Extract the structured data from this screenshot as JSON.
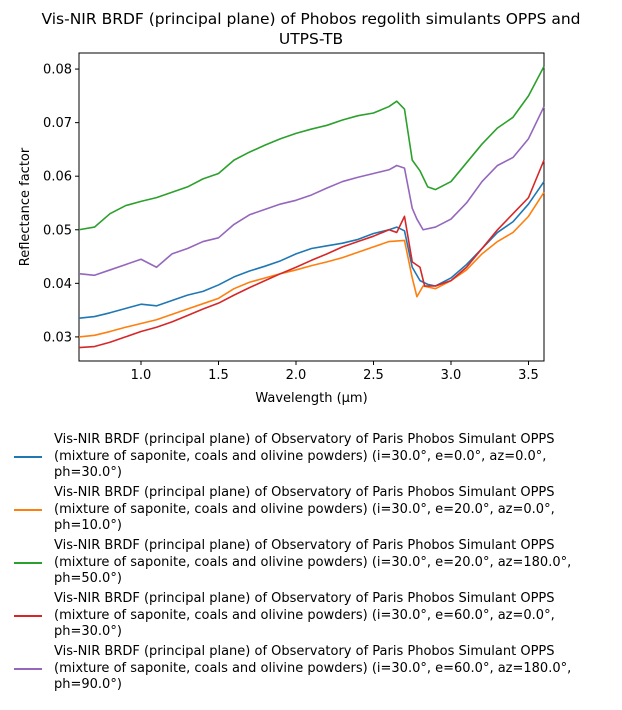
{
  "chart_data": {
    "type": "line",
    "title": "Vis-NIR BRDF (principal plane) of Phobos regolith simulants OPPS and UTPS-TB",
    "title_lines": [
      "Vis-NIR BRDF (principal plane) of Phobos regolith simulants OPPS and",
      "UTPS-TB"
    ],
    "xlabel": "Wavelength (μm)",
    "ylabel": "Reflectance factor",
    "xlim": [
      0.6,
      3.6
    ],
    "ylim": [
      0.0255,
      0.083
    ],
    "xticks": [
      1.0,
      1.5,
      2.0,
      2.5,
      3.0,
      3.5
    ],
    "xtick_labels": [
      "1.0",
      "1.5",
      "2.0",
      "2.5",
      "3.0",
      "3.5"
    ],
    "yticks": [
      0.03,
      0.04,
      0.05,
      0.06,
      0.07,
      0.08
    ],
    "ytick_labels": [
      "0.03",
      "0.04",
      "0.05",
      "0.06",
      "0.07",
      "0.08"
    ],
    "grid": false,
    "legend_position": "below plot",
    "series": [
      {
        "name": "Vis-NIR BRDF (principal plane) of Observatory of Paris Phobos Simulant OPPS (mixture of saponite, coals and olivine powders) (i=30.0°, e=0.0°, az=0.0°, ph=30.0°)",
        "legend_lines": [
          "Vis-NIR BRDF (principal plane) of Observatory of Paris Phobos Simulant OPPS",
          "(mixture of saponite, coals and olivine powders) (i=30.0°, e=0.0°, az=0.0°,",
          "ph=30.0°)"
        ],
        "color": "#1f77b4",
        "points": [
          [
            0.6,
            0.0335
          ],
          [
            0.7,
            0.0338
          ],
          [
            0.8,
            0.0345
          ],
          [
            0.9,
            0.0353
          ],
          [
            1.0,
            0.0361
          ],
          [
            1.1,
            0.0358
          ],
          [
            1.2,
            0.0368
          ],
          [
            1.3,
            0.0378
          ],
          [
            1.4,
            0.0385
          ],
          [
            1.5,
            0.0397
          ],
          [
            1.6,
            0.0412
          ],
          [
            1.7,
            0.0423
          ],
          [
            1.8,
            0.0432
          ],
          [
            1.9,
            0.0442
          ],
          [
            2.0,
            0.0455
          ],
          [
            2.1,
            0.0465
          ],
          [
            2.2,
            0.047
          ],
          [
            2.3,
            0.0475
          ],
          [
            2.4,
            0.0482
          ],
          [
            2.5,
            0.0493
          ],
          [
            2.6,
            0.05
          ],
          [
            2.65,
            0.0505
          ],
          [
            2.7,
            0.0498
          ],
          [
            2.75,
            0.043
          ],
          [
            2.8,
            0.0405
          ],
          [
            2.85,
            0.0398
          ],
          [
            2.9,
            0.0395
          ],
          [
            3.0,
            0.041
          ],
          [
            3.1,
            0.0435
          ],
          [
            3.2,
            0.0465
          ],
          [
            3.3,
            0.0495
          ],
          [
            3.4,
            0.0515
          ],
          [
            3.5,
            0.0548
          ],
          [
            3.6,
            0.059
          ]
        ]
      },
      {
        "name": "Vis-NIR BRDF (principal plane) of Observatory of Paris Phobos Simulant OPPS (mixture of saponite, coals and olivine powders) (i=30.0°, e=20.0°, az=0.0°, ph=10.0°)",
        "legend_lines": [
          "Vis-NIR BRDF (principal plane) of Observatory of Paris Phobos Simulant OPPS",
          "(mixture of saponite, coals and olivine powders) (i=30.0°, e=20.0°, az=0.0°,",
          "ph=10.0°)"
        ],
        "color": "#ff7f0e",
        "points": [
          [
            0.6,
            0.03
          ],
          [
            0.7,
            0.0303
          ],
          [
            0.8,
            0.031
          ],
          [
            0.9,
            0.0318
          ],
          [
            1.0,
            0.0325
          ],
          [
            1.1,
            0.0332
          ],
          [
            1.2,
            0.0342
          ],
          [
            1.3,
            0.0352
          ],
          [
            1.4,
            0.0362
          ],
          [
            1.5,
            0.0372
          ],
          [
            1.6,
            0.039
          ],
          [
            1.7,
            0.0402
          ],
          [
            1.8,
            0.041
          ],
          [
            1.9,
            0.0418
          ],
          [
            2.0,
            0.0425
          ],
          [
            2.1,
            0.0433
          ],
          [
            2.2,
            0.044
          ],
          [
            2.3,
            0.0448
          ],
          [
            2.4,
            0.0458
          ],
          [
            2.5,
            0.0468
          ],
          [
            2.6,
            0.0478
          ],
          [
            2.7,
            0.048
          ],
          [
            2.75,
            0.041
          ],
          [
            2.78,
            0.0375
          ],
          [
            2.82,
            0.0395
          ],
          [
            2.9,
            0.039
          ],
          [
            3.0,
            0.0405
          ],
          [
            3.1,
            0.0425
          ],
          [
            3.2,
            0.0455
          ],
          [
            3.3,
            0.0478
          ],
          [
            3.4,
            0.0495
          ],
          [
            3.5,
            0.0525
          ],
          [
            3.6,
            0.057
          ]
        ]
      },
      {
        "name": "Vis-NIR BRDF (principal plane) of Observatory of Paris Phobos Simulant OPPS (mixture of saponite, coals and olivine powders) (i=30.0°, e=20.0°, az=180.0°, ph=50.0°)",
        "legend_lines": [
          "Vis-NIR BRDF (principal plane) of Observatory of Paris Phobos Simulant OPPS",
          "(mixture of saponite, coals and olivine powders) (i=30.0°, e=20.0°, az=180.0°,",
          "ph=50.0°)"
        ],
        "color": "#2ca02c",
        "points": [
          [
            0.6,
            0.05
          ],
          [
            0.7,
            0.0505
          ],
          [
            0.8,
            0.053
          ],
          [
            0.9,
            0.0545
          ],
          [
            1.0,
            0.0553
          ],
          [
            1.1,
            0.056
          ],
          [
            1.2,
            0.057
          ],
          [
            1.3,
            0.058
          ],
          [
            1.4,
            0.0595
          ],
          [
            1.5,
            0.0605
          ],
          [
            1.6,
            0.063
          ],
          [
            1.7,
            0.0645
          ],
          [
            1.8,
            0.0658
          ],
          [
            1.9,
            0.067
          ],
          [
            2.0,
            0.068
          ],
          [
            2.1,
            0.0688
          ],
          [
            2.2,
            0.0695
          ],
          [
            2.3,
            0.0705
          ],
          [
            2.4,
            0.0713
          ],
          [
            2.5,
            0.0718
          ],
          [
            2.6,
            0.073
          ],
          [
            2.65,
            0.074
          ],
          [
            2.7,
            0.0725
          ],
          [
            2.75,
            0.063
          ],
          [
            2.8,
            0.061
          ],
          [
            2.85,
            0.058
          ],
          [
            2.9,
            0.0575
          ],
          [
            3.0,
            0.059
          ],
          [
            3.1,
            0.0625
          ],
          [
            3.2,
            0.066
          ],
          [
            3.3,
            0.069
          ],
          [
            3.4,
            0.071
          ],
          [
            3.5,
            0.075
          ],
          [
            3.6,
            0.0805
          ]
        ]
      },
      {
        "name": "Vis-NIR BRDF (principal plane) of Observatory of Paris Phobos Simulant OPPS (mixture of saponite, coals and olivine powders) (i=30.0°, e=60.0°, az=0.0°, ph=30.0°)",
        "legend_lines": [
          "Vis-NIR BRDF (principal plane) of Observatory of Paris Phobos Simulant OPPS",
          "(mixture of saponite, coals and olivine powders) (i=30.0°, e=60.0°, az=0.0°,",
          "ph=30.0°)"
        ],
        "color": "#d62728",
        "points": [
          [
            0.6,
            0.028
          ],
          [
            0.7,
            0.0282
          ],
          [
            0.8,
            0.029
          ],
          [
            0.9,
            0.03
          ],
          [
            1.0,
            0.031
          ],
          [
            1.1,
            0.0318
          ],
          [
            1.2,
            0.0328
          ],
          [
            1.3,
            0.034
          ],
          [
            1.4,
            0.0352
          ],
          [
            1.5,
            0.0363
          ],
          [
            1.6,
            0.0378
          ],
          [
            1.7,
            0.0392
          ],
          [
            1.8,
            0.0405
          ],
          [
            1.9,
            0.0418
          ],
          [
            2.0,
            0.043
          ],
          [
            2.1,
            0.0443
          ],
          [
            2.2,
            0.0455
          ],
          [
            2.3,
            0.0468
          ],
          [
            2.4,
            0.0478
          ],
          [
            2.5,
            0.0488
          ],
          [
            2.6,
            0.05
          ],
          [
            2.65,
            0.0495
          ],
          [
            2.7,
            0.0525
          ],
          [
            2.75,
            0.044
          ],
          [
            2.8,
            0.043
          ],
          [
            2.83,
            0.0395
          ],
          [
            2.9,
            0.0395
          ],
          [
            3.0,
            0.0405
          ],
          [
            3.1,
            0.043
          ],
          [
            3.2,
            0.0465
          ],
          [
            3.3,
            0.05
          ],
          [
            3.4,
            0.053
          ],
          [
            3.5,
            0.056
          ],
          [
            3.6,
            0.063
          ]
        ]
      },
      {
        "name": "Vis-NIR BRDF (principal plane) of Observatory of Paris Phobos Simulant OPPS (mixture of saponite, coals and olivine powders) (i=30.0°, e=60.0°, az=180.0°, ph=90.0°)",
        "legend_lines": [
          "Vis-NIR BRDF (principal plane) of Observatory of Paris Phobos Simulant OPPS",
          "(mixture of saponite, coals and olivine powders) (i=30.0°, e=60.0°, az=180.0°,",
          "ph=90.0°)"
        ],
        "color": "#9467bd",
        "points": [
          [
            0.6,
            0.0418
          ],
          [
            0.7,
            0.0415
          ],
          [
            0.8,
            0.0425
          ],
          [
            0.9,
            0.0435
          ],
          [
            1.0,
            0.0445
          ],
          [
            1.1,
            0.043
          ],
          [
            1.2,
            0.0455
          ],
          [
            1.3,
            0.0465
          ],
          [
            1.4,
            0.0478
          ],
          [
            1.5,
            0.0485
          ],
          [
            1.6,
            0.051
          ],
          [
            1.7,
            0.0528
          ],
          [
            1.8,
            0.0538
          ],
          [
            1.9,
            0.0548
          ],
          [
            2.0,
            0.0555
          ],
          [
            2.1,
            0.0565
          ],
          [
            2.2,
            0.0578
          ],
          [
            2.3,
            0.059
          ],
          [
            2.4,
            0.0598
          ],
          [
            2.5,
            0.0605
          ],
          [
            2.6,
            0.0612
          ],
          [
            2.65,
            0.062
          ],
          [
            2.7,
            0.0615
          ],
          [
            2.75,
            0.054
          ],
          [
            2.78,
            0.052
          ],
          [
            2.82,
            0.05
          ],
          [
            2.9,
            0.0505
          ],
          [
            3.0,
            0.052
          ],
          [
            3.1,
            0.055
          ],
          [
            3.2,
            0.059
          ],
          [
            3.3,
            0.062
          ],
          [
            3.4,
            0.0635
          ],
          [
            3.5,
            0.067
          ],
          [
            3.6,
            0.073
          ]
        ]
      }
    ]
  }
}
